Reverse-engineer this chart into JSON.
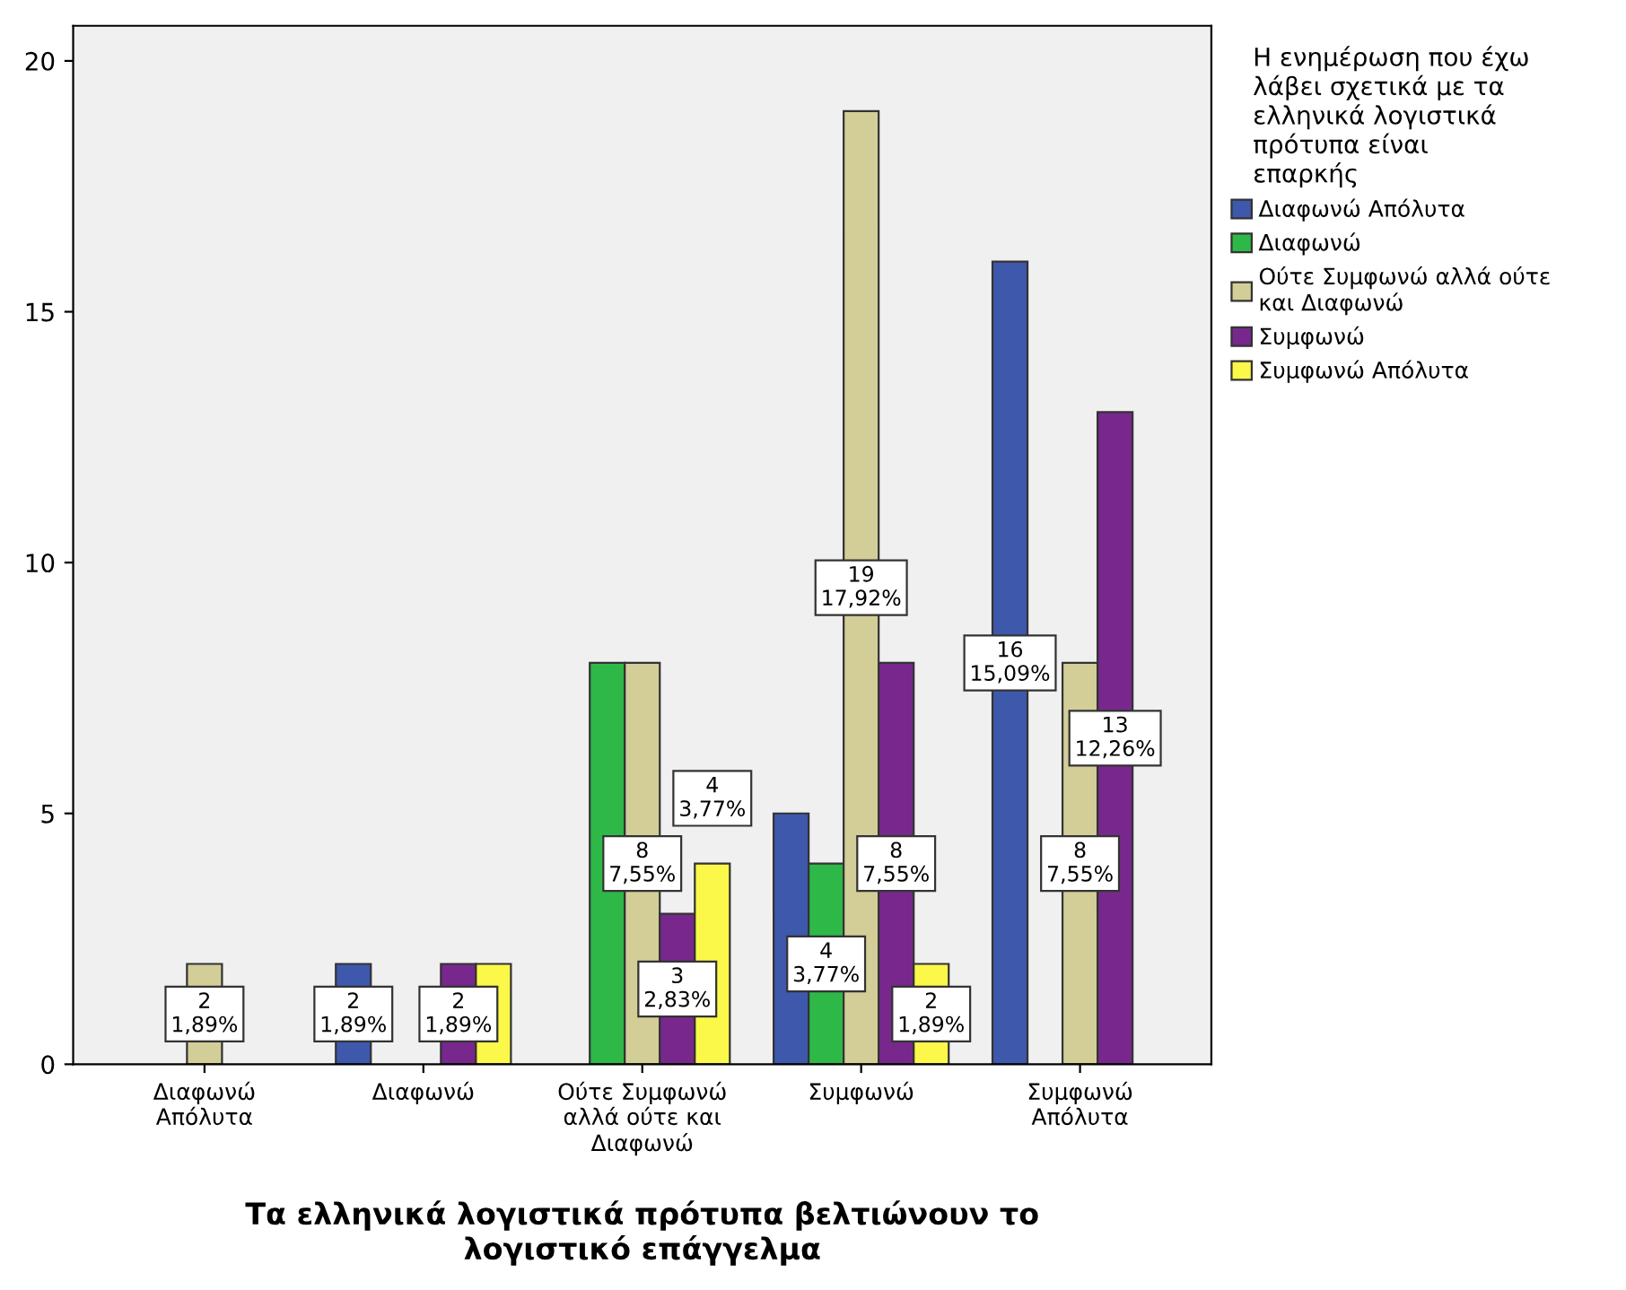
{
  "chart_data": {
    "type": "bar",
    "xlabel": "Τα ελληνικά λογιστικά πρότυπα βελτιώνουν το\nλογιστικό επάγγελμα",
    "legend_title": "Η ενημέρωση που έχω\nλάβει σχετικά με τα\nελληνικά λογιστικά\nπρότυπα είναι\nεπαρκής",
    "categories": [
      "Διαφωνώ\nΑπόλυτα",
      "Διαφωνώ",
      "Ούτε Συμφωνώ\nαλλά ούτε και\nΔιαφωνώ",
      "Συμφωνώ",
      "Συμφωνώ\nΑπόλυτα"
    ],
    "series": [
      {
        "name": "Διαφωνώ Απόλυτα",
        "color": "#3e58ac",
        "values": [
          null,
          2,
          null,
          5,
          16
        ],
        "value_labels": [
          null,
          "2\n1,89%",
          null,
          null,
          "16\n15,09%"
        ]
      },
      {
        "name": "Διαφωνώ",
        "color": "#2eb848",
        "values": [
          null,
          null,
          8,
          4,
          null
        ],
        "value_labels": [
          null,
          null,
          null,
          "4\n3,77%",
          null
        ]
      },
      {
        "name": "Ούτε Συμφωνώ αλλά ούτε\nκαι Διαφωνώ",
        "color": "#d3ce97",
        "values": [
          2,
          null,
          8,
          19,
          8
        ],
        "value_labels": [
          "2\n1,89%",
          null,
          "8\n7,55%",
          "19\n17,92%",
          "8\n7,55%"
        ]
      },
      {
        "name": "Συμφωνώ",
        "color": "#78288c",
        "values": [
          null,
          2,
          3,
          8,
          13
        ],
        "value_labels": [
          null,
          "2\n1,89%",
          "3\n2,83%",
          "8\n7,55%",
          "13\n12,26%"
        ]
      },
      {
        "name": "Συμφωνώ Απόλυτα",
        "color": "#fcf84a",
        "values": [
          null,
          2,
          4,
          2,
          null
        ],
        "value_labels": [
          null,
          null,
          "4\n3,77%",
          "2\n1,89%",
          null
        ]
      }
    ],
    "ylim": [
      0,
      20.7
    ],
    "yticks": [
      0,
      5,
      10,
      15,
      20
    ],
    "legend": "right"
  }
}
